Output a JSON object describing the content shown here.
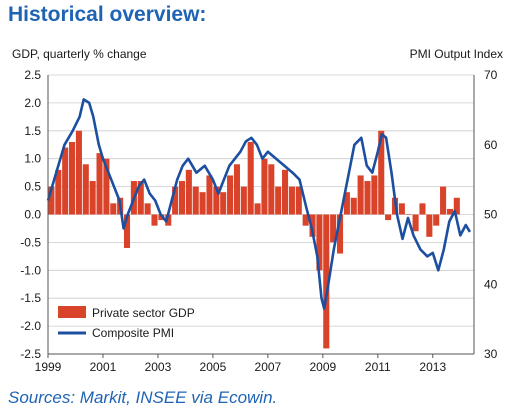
{
  "title": "Historical overview:",
  "source": "Sources: Markit, INSEE via Ecowin.",
  "colors": {
    "title": "#1f64b4",
    "gdp_bar": "#d9432a",
    "pmi_line": "#1c4fa0",
    "grid": "#cccccc"
  },
  "chart_data": {
    "type": "bar+line",
    "left_axis_label": "GDP, quarterly % change",
    "right_axis_label": "PMI Output Index",
    "x_range": [
      1999,
      2014.5
    ],
    "x_ticks": [
      "1999",
      "2001",
      "2003",
      "2005",
      "2007",
      "2009",
      "2011",
      "2013"
    ],
    "y_left": {
      "range": [
        -2.5,
        2.5
      ],
      "ticks": [
        "2.5",
        "2.0",
        "1.5",
        "1.0",
        "0.5",
        "0.0",
        "-0.5",
        "-1.0",
        "-1.5",
        "-2.0",
        "-2.5"
      ]
    },
    "y_right": {
      "range": [
        30,
        70
      ],
      "ticks": [
        "70",
        "60",
        "50",
        "40",
        "30"
      ]
    },
    "grid": true,
    "legend_position": "bottom-left",
    "series": [
      {
        "name": "Private sector GDP",
        "type": "bar",
        "axis": "left",
        "quarters": [
          "1999Q1",
          "1999Q2",
          "1999Q3",
          "1999Q4",
          "2000Q1",
          "2000Q2",
          "2000Q3",
          "2000Q4",
          "2001Q1",
          "2001Q2",
          "2001Q3",
          "2001Q4",
          "2002Q1",
          "2002Q2",
          "2002Q3",
          "2002Q4",
          "2003Q1",
          "2003Q2",
          "2003Q3",
          "2003Q4",
          "2004Q1",
          "2004Q2",
          "2004Q3",
          "2004Q4",
          "2005Q1",
          "2005Q2",
          "2005Q3",
          "2005Q4",
          "2006Q1",
          "2006Q2",
          "2006Q3",
          "2006Q4",
          "2007Q1",
          "2007Q2",
          "2007Q3",
          "2007Q4",
          "2008Q1",
          "2008Q2",
          "2008Q3",
          "2008Q4",
          "2009Q1",
          "2009Q2",
          "2009Q3",
          "2009Q4",
          "2010Q1",
          "2010Q2",
          "2010Q3",
          "2010Q4",
          "2011Q1",
          "2011Q2",
          "2011Q3",
          "2011Q4",
          "2012Q1",
          "2012Q2",
          "2012Q3",
          "2012Q4",
          "2013Q1",
          "2013Q2",
          "2013Q3",
          "2013Q4"
        ],
        "values": [
          0.5,
          0.8,
          1.2,
          1.3,
          1.5,
          0.9,
          0.6,
          1.1,
          1.0,
          0.2,
          0.3,
          -0.6,
          0.6,
          0.6,
          0.2,
          -0.2,
          -0.1,
          -0.2,
          0.5,
          0.6,
          0.8,
          0.5,
          0.4,
          0.7,
          0.5,
          0.4,
          0.7,
          0.9,
          0.5,
          1.3,
          0.2,
          1.0,
          0.9,
          0.5,
          0.8,
          0.5,
          0.5,
          -0.2,
          -0.4,
          -1.0,
          -2.4,
          -0.5,
          -0.7,
          0.4,
          0.3,
          0.7,
          0.6,
          0.7,
          1.5,
          -0.1,
          0.3,
          0.2,
          0.0,
          -0.3,
          0.2,
          -0.4,
          -0.2,
          0.5,
          0.1,
          0.3
        ]
      },
      {
        "name": "Composite PMI",
        "type": "line",
        "axis": "right",
        "points": [
          [
            1999.0,
            52.0
          ],
          [
            1999.3,
            56.0
          ],
          [
            1999.6,
            60.0
          ],
          [
            1999.9,
            62.0
          ],
          [
            2000.15,
            64.0
          ],
          [
            2000.3,
            66.5
          ],
          [
            2000.5,
            66.0
          ],
          [
            2000.65,
            64.0
          ],
          [
            2000.85,
            60.0
          ],
          [
            2001.0,
            58.0
          ],
          [
            2001.2,
            56.0
          ],
          [
            2001.4,
            54.0
          ],
          [
            2001.6,
            52.0
          ],
          [
            2001.75,
            48.0
          ],
          [
            2001.9,
            50.0
          ],
          [
            2002.1,
            52.0
          ],
          [
            2002.3,
            54.0
          ],
          [
            2002.5,
            55.0
          ],
          [
            2002.7,
            53.0
          ],
          [
            2002.9,
            52.0
          ],
          [
            2003.1,
            50.0
          ],
          [
            2003.3,
            49.0
          ],
          [
            2003.5,
            52.0
          ],
          [
            2003.7,
            55.0
          ],
          [
            2003.9,
            57.0
          ],
          [
            2004.1,
            58.0
          ],
          [
            2004.4,
            56.0
          ],
          [
            2004.7,
            57.0
          ],
          [
            2005.0,
            55.0
          ],
          [
            2005.2,
            53.0
          ],
          [
            2005.4,
            55.0
          ],
          [
            2005.6,
            57.0
          ],
          [
            2005.8,
            58.0
          ],
          [
            2006.0,
            59.0
          ],
          [
            2006.2,
            60.5
          ],
          [
            2006.4,
            61.0
          ],
          [
            2006.6,
            60.0
          ],
          [
            2006.8,
            58.0
          ],
          [
            2007.0,
            59.0
          ],
          [
            2007.3,
            58.0
          ],
          [
            2007.6,
            57.0
          ],
          [
            2007.9,
            56.0
          ],
          [
            2008.15,
            55.0
          ],
          [
            2008.4,
            51.0
          ],
          [
            2008.6,
            48.0
          ],
          [
            2008.8,
            44.0
          ],
          [
            2008.95,
            38.0
          ],
          [
            2009.05,
            36.5
          ],
          [
            2009.2,
            40.0
          ],
          [
            2009.4,
            45.0
          ],
          [
            2009.6,
            49.0
          ],
          [
            2009.8,
            53.0
          ],
          [
            2010.0,
            57.0
          ],
          [
            2010.15,
            60.0
          ],
          [
            2010.4,
            61.0
          ],
          [
            2010.6,
            57.0
          ],
          [
            2010.8,
            56.0
          ],
          [
            2011.0,
            59.0
          ],
          [
            2011.15,
            61.5
          ],
          [
            2011.3,
            61.0
          ],
          [
            2011.5,
            56.0
          ],
          [
            2011.7,
            50.0
          ],
          [
            2011.9,
            46.5
          ],
          [
            2012.1,
            49.5
          ],
          [
            2012.3,
            47.0
          ],
          [
            2012.55,
            45.0
          ],
          [
            2012.8,
            44.0
          ],
          [
            2013.0,
            44.5
          ],
          [
            2013.2,
            42.0
          ],
          [
            2013.4,
            45.0
          ],
          [
            2013.6,
            49.0
          ],
          [
            2013.8,
            50.5
          ],
          [
            2014.0,
            47.0
          ],
          [
            2014.2,
            48.5
          ],
          [
            2014.35,
            47.5
          ]
        ]
      }
    ]
  }
}
